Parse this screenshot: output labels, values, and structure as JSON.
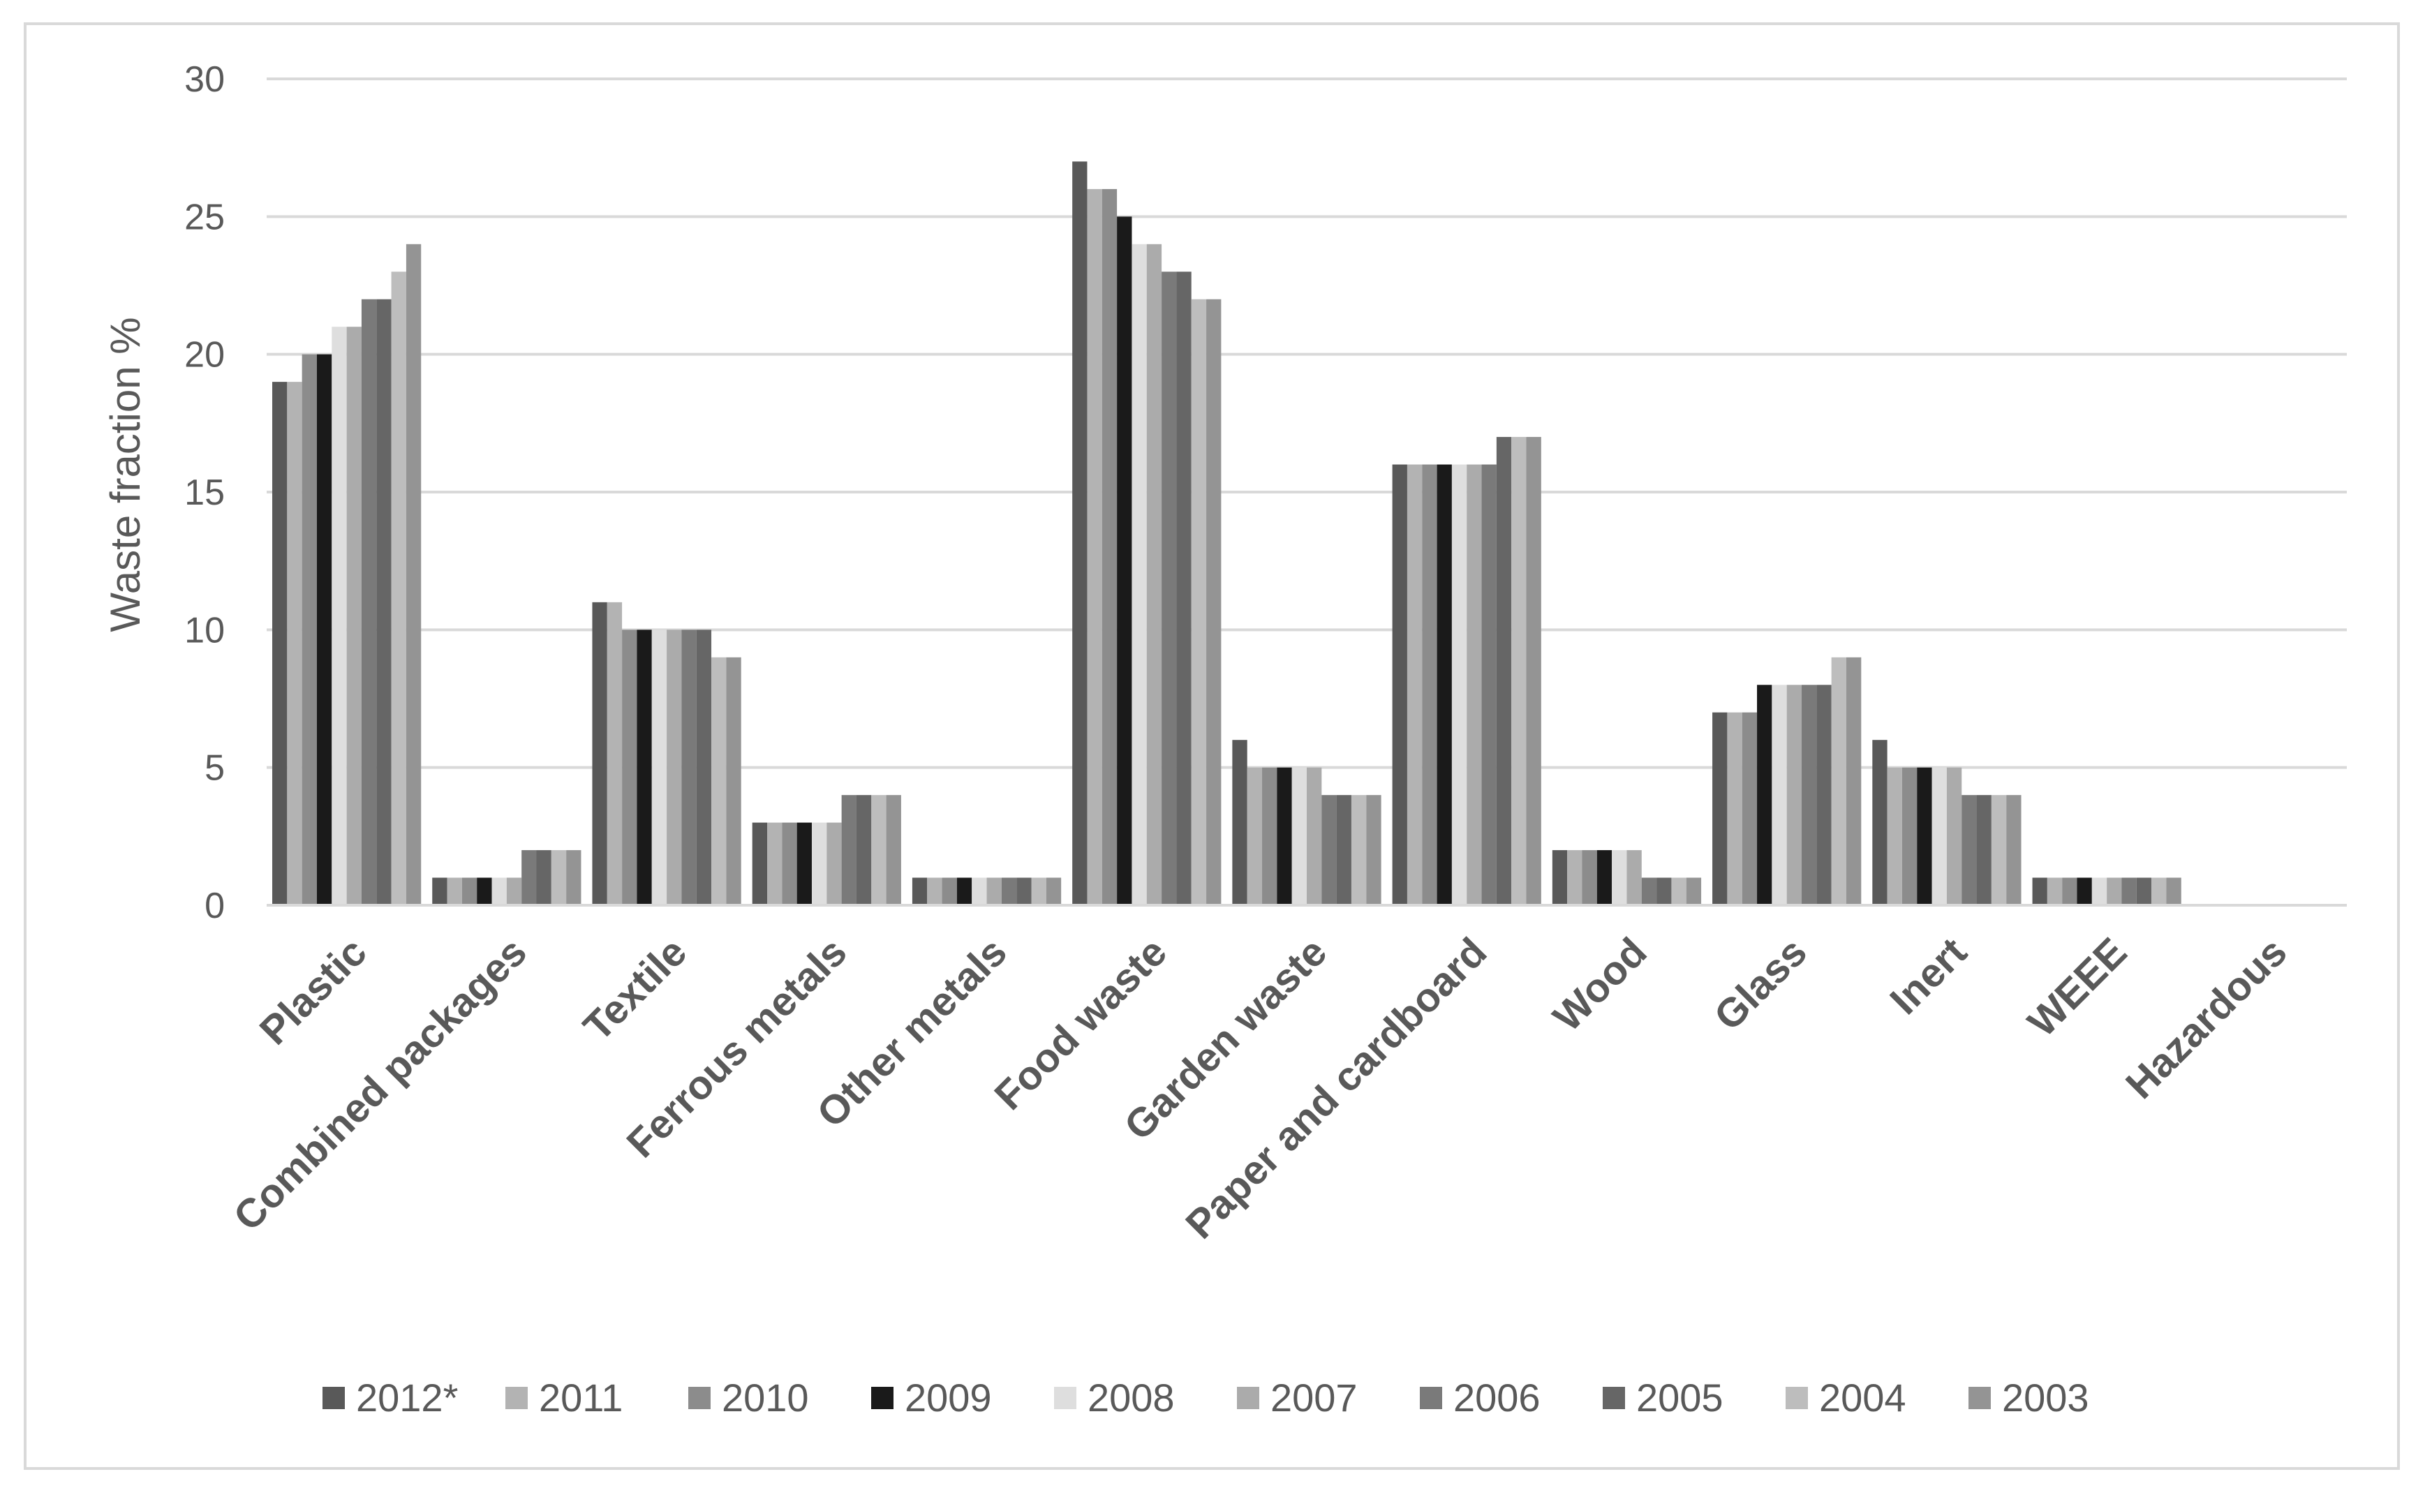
{
  "chart_data": {
    "type": "bar",
    "title": "",
    "xlabel": "",
    "ylabel": "Waste fraction %",
    "ylim": [
      0,
      30
    ],
    "yticks": [
      0,
      5,
      10,
      15,
      20,
      25,
      30
    ],
    "grid": true,
    "legend_position": "bottom",
    "categories": [
      "Plastic",
      "Combined packages",
      "Textile",
      "Ferrous metals",
      "Other metals",
      "Food waste",
      "Garden waste",
      "Paper and cardboard",
      "Wood",
      "Glass",
      "Inert",
      "WEEE",
      "Hazardous"
    ],
    "series": [
      {
        "name": "2012*",
        "color": "#595959",
        "values": [
          19,
          1,
          11,
          3,
          1,
          27,
          6,
          16,
          2,
          7,
          6,
          1,
          0
        ]
      },
      {
        "name": "2011",
        "color": "#b3b3b3",
        "values": [
          19,
          1,
          11,
          3,
          1,
          26,
          5,
          16,
          2,
          7,
          5,
          1,
          0
        ]
      },
      {
        "name": "2010",
        "color": "#8c8c8c",
        "values": [
          20,
          1,
          10,
          3,
          1,
          26,
          5,
          16,
          2,
          7,
          5,
          1,
          0
        ]
      },
      {
        "name": "2009",
        "color": "#1a1a1a",
        "values": [
          20,
          1,
          10,
          3,
          1,
          25,
          5,
          16,
          2,
          8,
          5,
          1,
          0
        ]
      },
      {
        "name": "2008",
        "color": "#dedede",
        "values": [
          21,
          1,
          10,
          3,
          1,
          24,
          5,
          16,
          2,
          8,
          5,
          1,
          0
        ]
      },
      {
        "name": "2007",
        "color": "#ababab",
        "values": [
          21,
          1,
          10,
          3,
          1,
          24,
          5,
          16,
          2,
          8,
          5,
          1,
          0
        ]
      },
      {
        "name": "2006",
        "color": "#7a7a7a",
        "values": [
          22,
          2,
          10,
          4,
          1,
          23,
          4,
          16,
          1,
          8,
          4,
          1,
          0
        ]
      },
      {
        "name": "2005",
        "color": "#666666",
        "values": [
          22,
          2,
          10,
          4,
          1,
          23,
          4,
          17,
          1,
          8,
          4,
          1,
          0
        ]
      },
      {
        "name": "2004",
        "color": "#bdbdbd",
        "values": [
          23,
          2,
          9,
          4,
          1,
          22,
          4,
          17,
          1,
          9,
          4,
          1,
          0
        ]
      },
      {
        "name": "2003",
        "color": "#949494",
        "values": [
          24,
          2,
          9,
          4,
          1,
          22,
          4,
          17,
          1,
          9,
          4,
          1,
          0
        ]
      }
    ]
  }
}
